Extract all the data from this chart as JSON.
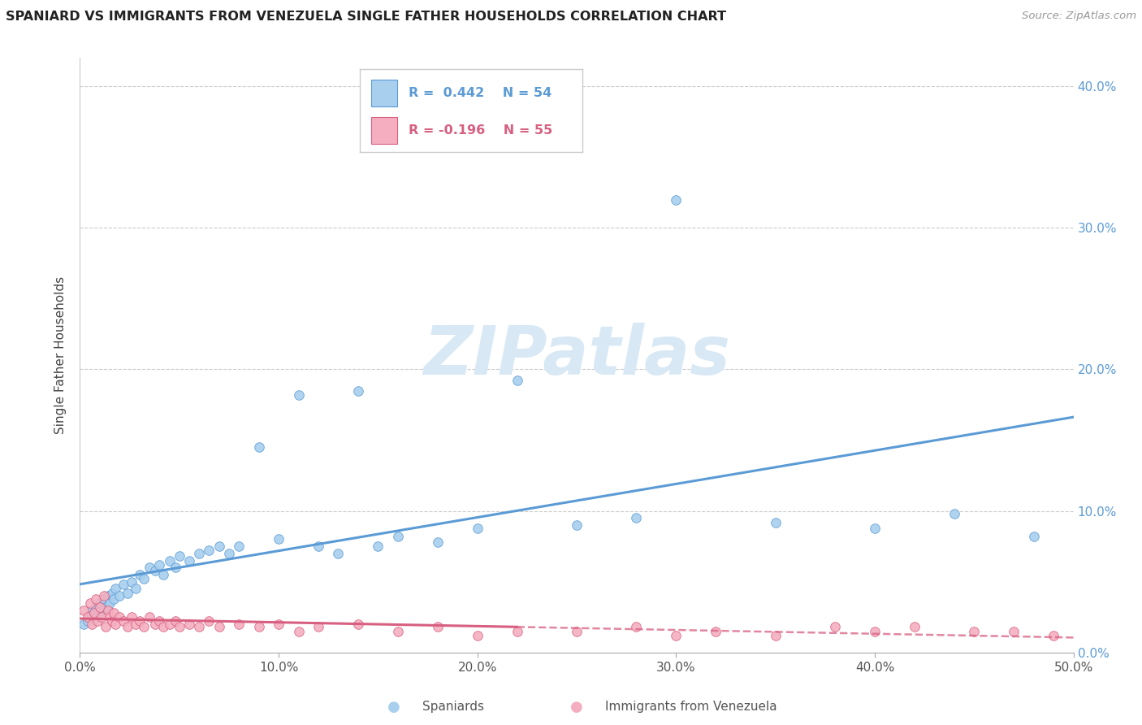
{
  "title": "SPANIARD VS IMMIGRANTS FROM VENEZUELA SINGLE FATHER HOUSEHOLDS CORRELATION CHART",
  "source": "Source: ZipAtlas.com",
  "ylabel": "Single Father Households",
  "legend_label1": "Spaniards",
  "legend_label2": "Immigrants from Venezuela",
  "r1": 0.442,
  "n1": 54,
  "r2": -0.196,
  "n2": 55,
  "color_blue": "#A8CFEE",
  "color_blue_dark": "#5B9BD5",
  "color_pink": "#F4AEBF",
  "color_pink_dark": "#D75F80",
  "watermark_color": "#D8E8F5",
  "blue_scatter_x": [
    0.002,
    0.004,
    0.005,
    0.006,
    0.007,
    0.008,
    0.009,
    0.01,
    0.011,
    0.012,
    0.013,
    0.014,
    0.015,
    0.016,
    0.017,
    0.018,
    0.02,
    0.022,
    0.024,
    0.026,
    0.028,
    0.03,
    0.032,
    0.035,
    0.038,
    0.04,
    0.042,
    0.045,
    0.048,
    0.05,
    0.055,
    0.06,
    0.065,
    0.07,
    0.075,
    0.08,
    0.09,
    0.1,
    0.11,
    0.12,
    0.13,
    0.14,
    0.15,
    0.16,
    0.18,
    0.2,
    0.22,
    0.25,
    0.28,
    0.3,
    0.35,
    0.4,
    0.44,
    0.48
  ],
  "blue_scatter_y": [
    0.02,
    0.022,
    0.025,
    0.03,
    0.028,
    0.032,
    0.025,
    0.035,
    0.03,
    0.038,
    0.032,
    0.04,
    0.035,
    0.042,
    0.038,
    0.045,
    0.04,
    0.048,
    0.042,
    0.05,
    0.045,
    0.055,
    0.052,
    0.06,
    0.058,
    0.062,
    0.055,
    0.065,
    0.06,
    0.068,
    0.065,
    0.07,
    0.072,
    0.075,
    0.07,
    0.075,
    0.145,
    0.08,
    0.182,
    0.075,
    0.07,
    0.185,
    0.075,
    0.082,
    0.078,
    0.088,
    0.192,
    0.09,
    0.095,
    0.32,
    0.092,
    0.088,
    0.098,
    0.082
  ],
  "pink_scatter_x": [
    0.002,
    0.004,
    0.005,
    0.006,
    0.007,
    0.008,
    0.009,
    0.01,
    0.011,
    0.012,
    0.013,
    0.014,
    0.015,
    0.016,
    0.017,
    0.018,
    0.02,
    0.022,
    0.024,
    0.026,
    0.028,
    0.03,
    0.032,
    0.035,
    0.038,
    0.04,
    0.042,
    0.045,
    0.048,
    0.05,
    0.055,
    0.06,
    0.065,
    0.07,
    0.08,
    0.09,
    0.1,
    0.11,
    0.12,
    0.14,
    0.16,
    0.18,
    0.2,
    0.22,
    0.25,
    0.28,
    0.3,
    0.32,
    0.35,
    0.38,
    0.4,
    0.42,
    0.45,
    0.47,
    0.49
  ],
  "pink_scatter_y": [
    0.03,
    0.025,
    0.035,
    0.02,
    0.028,
    0.038,
    0.022,
    0.032,
    0.025,
    0.04,
    0.018,
    0.03,
    0.025,
    0.022,
    0.028,
    0.02,
    0.025,
    0.022,
    0.018,
    0.025,
    0.02,
    0.022,
    0.018,
    0.025,
    0.02,
    0.022,
    0.018,
    0.02,
    0.022,
    0.018,
    0.02,
    0.018,
    0.022,
    0.018,
    0.02,
    0.018,
    0.02,
    0.015,
    0.018,
    0.02,
    0.015,
    0.018,
    0.012,
    0.015,
    0.015,
    0.018,
    0.012,
    0.015,
    0.012,
    0.018,
    0.015,
    0.018,
    0.015,
    0.015,
    0.012
  ],
  "xlim": [
    0.0,
    0.5
  ],
  "ylim": [
    0.0,
    0.42
  ],
  "xticks": [
    0.0,
    0.1,
    0.2,
    0.3,
    0.4,
    0.5
  ],
  "xticklabels": [
    "0.0%",
    "10.0%",
    "20.0%",
    "30.0%",
    "40.0%",
    "50.0%"
  ],
  "yticks": [
    0.0,
    0.1,
    0.2,
    0.3,
    0.4
  ],
  "yticklabels": [
    "0.0%",
    "10.0%",
    "20.0%",
    "30.0%",
    "40.0%"
  ]
}
